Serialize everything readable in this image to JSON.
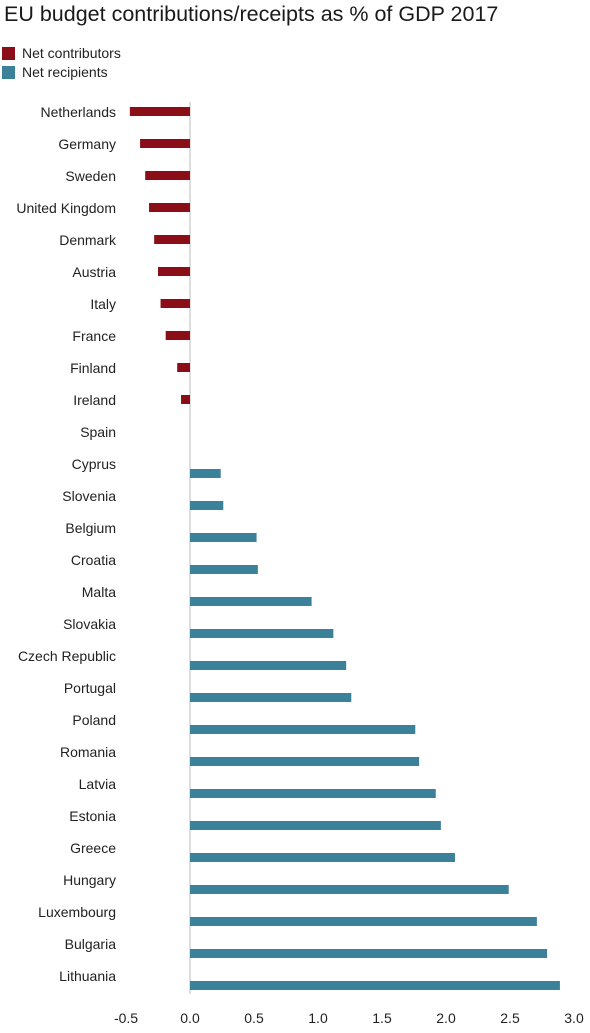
{
  "chart_data": {
    "type": "bar",
    "orientation": "horizontal",
    "title": "EU budget contributions/receipts as % of GDP 2017",
    "legend": [
      {
        "label": "Net contributors",
        "color": "#8b0d18"
      },
      {
        "label": "Net recipients",
        "color": "#3a8199"
      }
    ],
    "legend_position": "top-left",
    "colors": {
      "negative": "#8b0d18",
      "positive": "#3a8199",
      "axis": "#bbbbbb"
    },
    "xlim": [
      -0.5,
      3.0
    ],
    "xticks": [
      "-0.5",
      "0.0",
      "0.5",
      "1.0",
      "1.5",
      "2.0",
      "2.5",
      "3.0"
    ],
    "xtick_values": [
      -0.5,
      0.0,
      0.5,
      1.0,
      1.5,
      2.0,
      2.5,
      3.0
    ],
    "grid": false,
    "categories": [
      "Netherlands",
      "Germany",
      "Sweden",
      "United Kingdom",
      "Denmark",
      "Austria",
      "Italy",
      "France",
      "Finland",
      "Ireland",
      "Spain",
      "Cyprus",
      "Slovenia",
      "Belgium",
      "Croatia",
      "Malta",
      "Slovakia",
      "Czech Republic",
      "Portugal",
      "Poland",
      "Romania",
      "Latvia",
      "Estonia",
      "Greece",
      "Hungary",
      "Luxembourg",
      "Bulgaria",
      "Lithuania"
    ],
    "values": [
      -0.47,
      -0.39,
      -0.35,
      -0.32,
      -0.28,
      -0.25,
      -0.23,
      -0.19,
      -0.1,
      -0.07,
      0.0,
      0.24,
      0.26,
      0.52,
      0.53,
      0.95,
      1.12,
      1.22,
      1.26,
      1.76,
      1.79,
      1.92,
      1.96,
      2.07,
      2.49,
      2.71,
      2.79,
      2.89
    ]
  }
}
